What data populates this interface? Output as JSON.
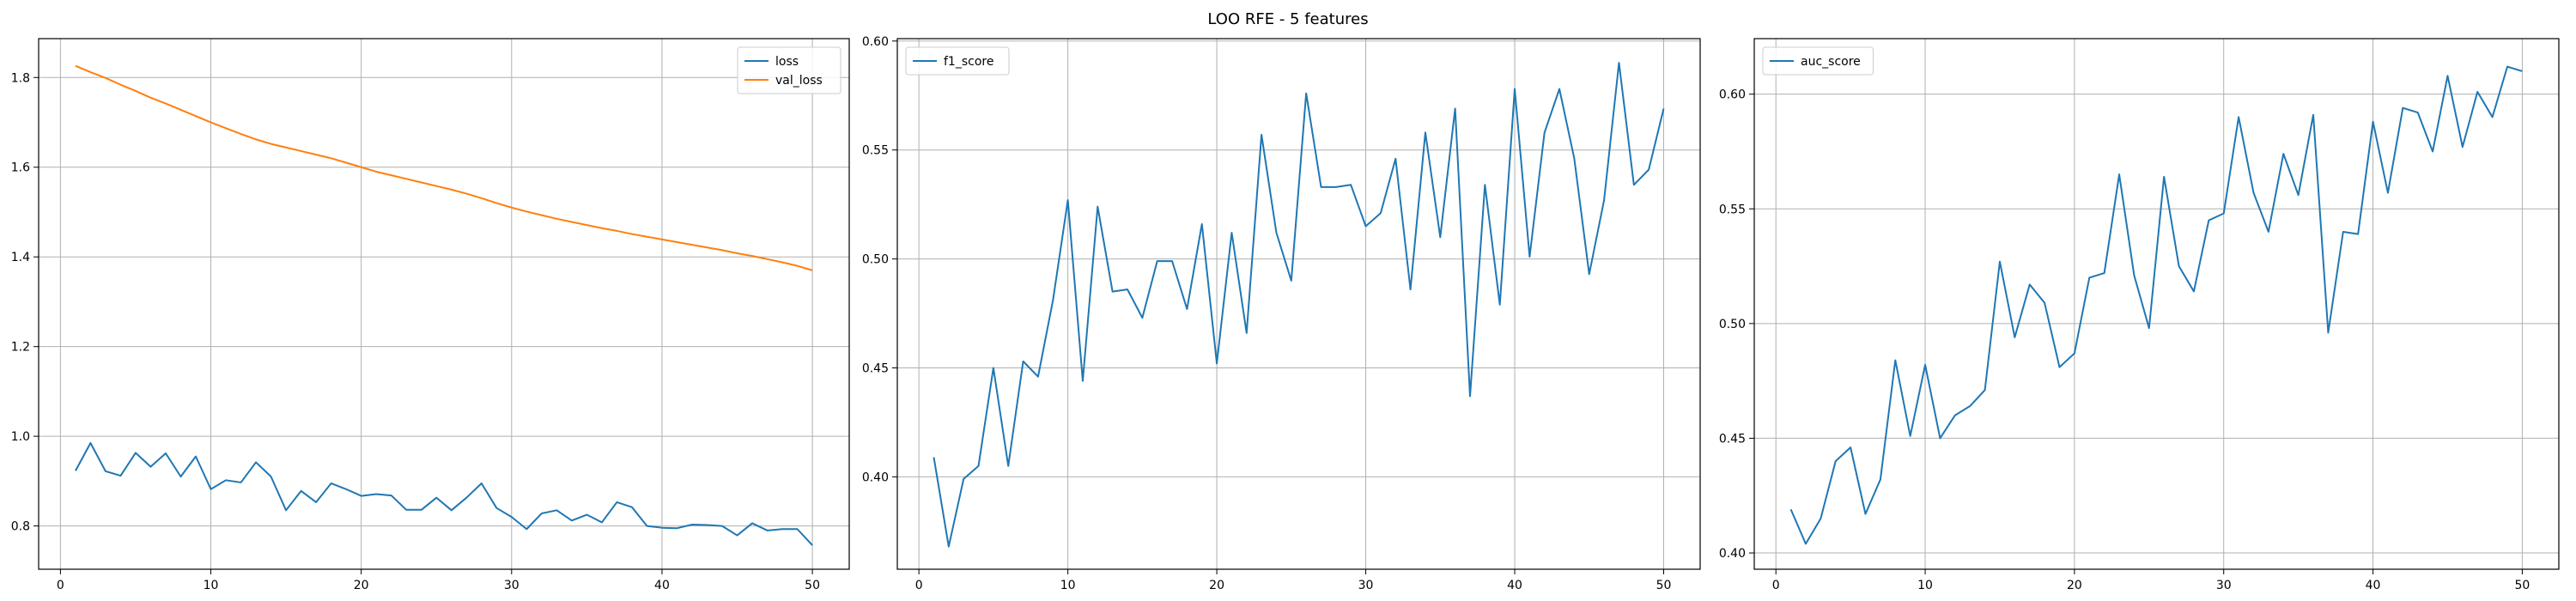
{
  "figure": {
    "suptitle": "LOO RFE - 5 features"
  },
  "chart_data": [
    {
      "type": "line",
      "title": "",
      "xlabel": "",
      "ylabel": "",
      "xlim": [
        -1.45,
        52.45
      ],
      "ylim": [
        0.7035,
        1.8867
      ],
      "xticks": [
        0,
        10,
        20,
        30,
        40,
        50
      ],
      "yticks": [
        0.8,
        1.0,
        1.2,
        1.4,
        1.6,
        1.8
      ],
      "ytick_labels": [
        "0.8",
        "1.0",
        "1.2",
        "1.4",
        "1.6",
        "1.8"
      ],
      "grid": true,
      "legend_position": "upper right",
      "x": [
        1,
        2,
        3,
        4,
        5,
        6,
        7,
        8,
        9,
        10,
        11,
        12,
        13,
        14,
        15,
        16,
        17,
        18,
        19,
        20,
        21,
        22,
        23,
        24,
        25,
        26,
        27,
        28,
        29,
        30,
        31,
        32,
        33,
        34,
        35,
        36,
        37,
        38,
        39,
        40,
        41,
        42,
        43,
        44,
        45,
        46,
        47,
        48,
        49,
        50
      ],
      "series": [
        {
          "name": "loss",
          "color": "#1f77b4",
          "values": [
            0.923,
            0.985,
            0.922,
            0.912,
            0.963,
            0.932,
            0.962,
            0.91,
            0.955,
            0.882,
            0.902,
            0.897,
            0.942,
            0.91,
            0.835,
            0.878,
            0.853,
            0.895,
            0.882,
            0.867,
            0.871,
            0.868,
            0.836,
            0.836,
            0.863,
            0.835,
            0.863,
            0.895,
            0.84,
            0.82,
            0.793,
            0.828,
            0.835,
            0.812,
            0.825,
            0.808,
            0.853,
            0.842,
            0.8,
            0.796,
            0.795,
            0.803,
            0.802,
            0.8,
            0.779,
            0.806,
            0.79,
            0.793,
            0.793,
            0.757
          ]
        },
        {
          "name": "val_loss",
          "color": "#ff7f0e",
          "values": [
            1.826,
            1.812,
            1.799,
            1.784,
            1.77,
            1.755,
            1.742,
            1.728,
            1.714,
            1.7,
            1.687,
            1.674,
            1.662,
            1.652,
            1.644,
            1.636,
            1.628,
            1.62,
            1.61,
            1.6,
            1.59,
            1.582,
            1.574,
            1.566,
            1.558,
            1.55,
            1.541,
            1.531,
            1.52,
            1.51,
            1.501,
            1.493,
            1.485,
            1.478,
            1.471,
            1.464,
            1.458,
            1.451,
            1.445,
            1.439,
            1.433,
            1.427,
            1.421,
            1.415,
            1.408,
            1.402,
            1.395,
            1.388,
            1.38,
            1.37
          ]
        }
      ]
    },
    {
      "type": "line",
      "title": "",
      "xlabel": "",
      "ylabel": "",
      "xlim": [
        -1.45,
        52.45
      ],
      "ylim": [
        0.3576,
        0.6011
      ],
      "xticks": [
        0,
        10,
        20,
        30,
        40,
        50
      ],
      "yticks": [
        0.4,
        0.45,
        0.5,
        0.55,
        0.6
      ],
      "ytick_labels": [
        "0.40",
        "0.45",
        "0.50",
        "0.55",
        "0.60"
      ],
      "grid": true,
      "legend_position": "upper left",
      "x": [
        1,
        2,
        3,
        4,
        5,
        6,
        7,
        8,
        9,
        10,
        11,
        12,
        13,
        14,
        15,
        16,
        17,
        18,
        19,
        20,
        21,
        22,
        23,
        24,
        25,
        26,
        27,
        28,
        29,
        30,
        31,
        32,
        33,
        34,
        35,
        36,
        37,
        38,
        39,
        40,
        41,
        42,
        43,
        44,
        45,
        46,
        47,
        48,
        49,
        50
      ],
      "series": [
        {
          "name": "f1_score",
          "color": "#1f77b4",
          "values": [
            0.409,
            0.368,
            0.399,
            0.405,
            0.45,
            0.405,
            0.453,
            0.446,
            0.481,
            0.527,
            0.444,
            0.524,
            0.485,
            0.486,
            0.473,
            0.499,
            0.499,
            0.477,
            0.516,
            0.452,
            0.512,
            0.466,
            0.557,
            0.512,
            0.49,
            0.576,
            0.533,
            0.533,
            0.534,
            0.515,
            0.521,
            0.546,
            0.486,
            0.558,
            0.51,
            0.569,
            0.437,
            0.534,
            0.479,
            0.578,
            0.501,
            0.558,
            0.578,
            0.546,
            0.493,
            0.527,
            0.59,
            0.534,
            0.541,
            0.569
          ]
        }
      ]
    },
    {
      "type": "line",
      "title": "",
      "xlabel": "",
      "ylabel": "",
      "xlim": [
        -1.45,
        52.45
      ],
      "ylim": [
        0.3929,
        0.6242
      ],
      "xticks": [
        0,
        10,
        20,
        30,
        40,
        50
      ],
      "yticks": [
        0.4,
        0.45,
        0.5,
        0.55,
        0.6
      ],
      "ytick_labels": [
        "0.40",
        "0.45",
        "0.50",
        "0.55",
        "0.60"
      ],
      "grid": true,
      "legend_position": "upper left",
      "x": [
        1,
        2,
        3,
        4,
        5,
        6,
        7,
        8,
        9,
        10,
        11,
        12,
        13,
        14,
        15,
        16,
        17,
        18,
        19,
        20,
        21,
        22,
        23,
        24,
        25,
        26,
        27,
        28,
        29,
        30,
        31,
        32,
        33,
        34,
        35,
        36,
        37,
        38,
        39,
        40,
        41,
        42,
        43,
        44,
        45,
        46,
        47,
        48,
        49,
        50
      ],
      "series": [
        {
          "name": "auc_score",
          "color": "#1f77b4",
          "values": [
            0.419,
            0.404,
            0.415,
            0.44,
            0.446,
            0.417,
            0.432,
            0.484,
            0.451,
            0.482,
            0.45,
            0.46,
            0.464,
            0.471,
            0.527,
            0.494,
            0.517,
            0.509,
            0.481,
            0.487,
            0.52,
            0.522,
            0.565,
            0.521,
            0.498,
            0.564,
            0.525,
            0.514,
            0.545,
            0.548,
            0.59,
            0.557,
            0.54,
            0.574,
            0.556,
            0.591,
            0.496,
            0.54,
            0.539,
            0.588,
            0.557,
            0.594,
            0.592,
            0.575,
            0.608,
            0.577,
            0.601,
            0.59,
            0.612,
            0.61
          ]
        }
      ]
    }
  ]
}
